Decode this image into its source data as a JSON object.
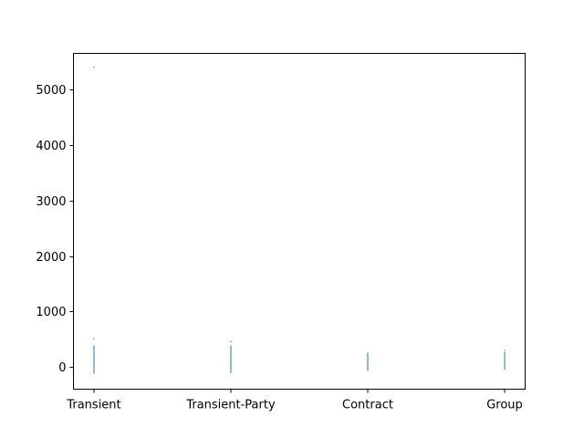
{
  "chart_data": {
    "type": "boxplot",
    "categories": [
      "Transient",
      "Transient-Party",
      "Contract",
      "Group"
    ],
    "ylim": [
      -400,
      5650
    ],
    "yticks": [
      0,
      1000,
      2000,
      3000,
      4000,
      5000
    ],
    "grid": false,
    "series": [
      {
        "values": [
          {
            "category": "Transient",
            "min": -120,
            "q1": 70,
            "median": 95,
            "q3": 125,
            "max": 390,
            "outliers": [
              510,
              5400
            ]
          },
          {
            "category": "Transient-Party",
            "min": -110,
            "q1": 60,
            "median": 85,
            "q3": 110,
            "max": 390,
            "outliers": [
              455
            ]
          },
          {
            "category": "Contract",
            "min": -70,
            "q1": 60,
            "median": 80,
            "q3": 100,
            "max": 260,
            "outliers": []
          },
          {
            "category": "Group",
            "min": -50,
            "q1": 60,
            "median": 80,
            "q3": 100,
            "max": 270,
            "outliers": [
              300
            ]
          }
        ]
      }
    ],
    "colors": {
      "box": "#1f77b4",
      "median": "#ff7f0e",
      "whisker": "#1f77b4",
      "axis": "#000000"
    }
  }
}
